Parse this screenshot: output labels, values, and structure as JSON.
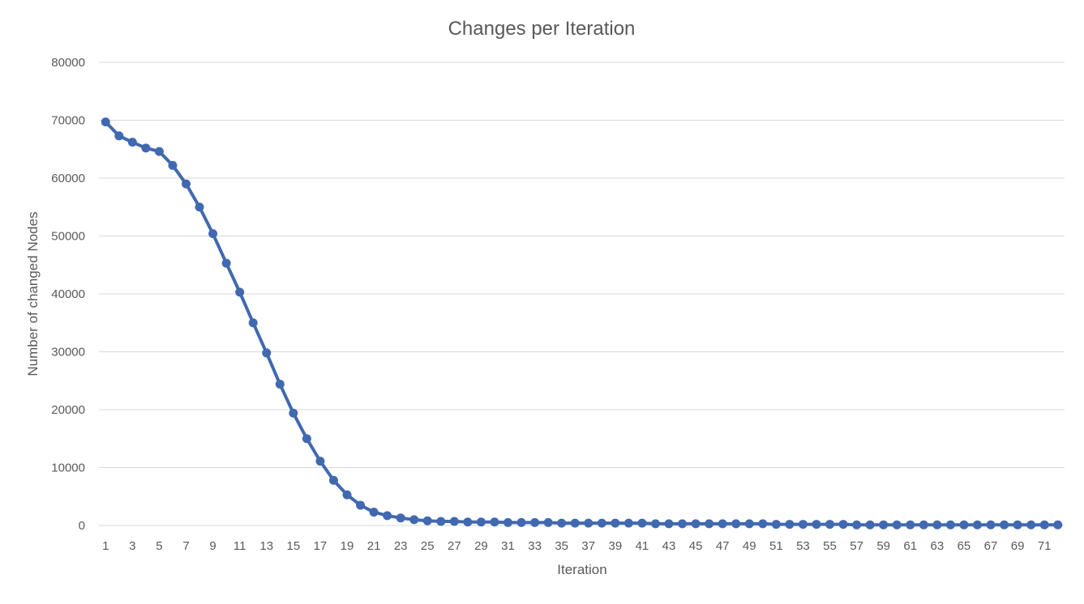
{
  "chart_data": {
    "type": "line",
    "title": "Changes per Iteration",
    "xlabel": "Iteration",
    "ylabel": "Number of changed Nodes",
    "ylim": [
      0,
      80000
    ],
    "yticks": [
      0,
      10000,
      20000,
      30000,
      40000,
      50000,
      60000,
      70000,
      80000
    ],
    "xtick_labels": [
      "1",
      "3",
      "5",
      "7",
      "9",
      "11",
      "13",
      "15",
      "17",
      "19",
      "21",
      "23",
      "25",
      "27",
      "29",
      "31",
      "33",
      "35",
      "37",
      "39",
      "41",
      "43",
      "45",
      "47",
      "49",
      "51",
      "53",
      "55",
      "57",
      "59",
      "61",
      "63",
      "65",
      "67",
      "69",
      "71"
    ],
    "grid": true,
    "legend": "none",
    "colors": {
      "series": "#4169b0",
      "grid": "#d9d9d9",
      "text": "#595959"
    },
    "x": [
      1,
      2,
      3,
      4,
      5,
      6,
      7,
      8,
      9,
      10,
      11,
      12,
      13,
      14,
      15,
      16,
      17,
      18,
      19,
      20,
      21,
      22,
      23,
      24,
      25,
      26,
      27,
      28,
      29,
      30,
      31,
      32,
      33,
      34,
      35,
      36,
      37,
      38,
      39,
      40,
      41,
      42,
      43,
      44,
      45,
      46,
      47,
      48,
      49,
      50,
      51,
      52,
      53,
      54,
      55,
      56,
      57,
      58,
      59,
      60,
      61,
      62,
      63,
      64,
      65,
      66,
      67,
      68,
      69,
      70,
      71,
      72
    ],
    "series": [
      {
        "values": [
          69700,
          67300,
          66200,
          65200,
          64600,
          62200,
          59000,
          55000,
          50400,
          45300,
          40300,
          35000,
          29800,
          24400,
          19400,
          15000,
          11100,
          7800,
          5300,
          3500,
          2300,
          1700,
          1300,
          1000,
          800,
          700,
          700,
          600,
          600,
          600,
          500,
          500,
          500,
          500,
          400,
          400,
          400,
          400,
          400,
          400,
          400,
          300,
          300,
          300,
          300,
          300,
          300,
          300,
          300,
          300,
          200,
          200,
          200,
          200,
          200,
          200,
          100,
          100,
          100,
          100,
          100,
          100,
          100,
          100,
          100,
          100,
          100,
          100,
          100,
          100,
          100,
          100
        ]
      }
    ]
  }
}
